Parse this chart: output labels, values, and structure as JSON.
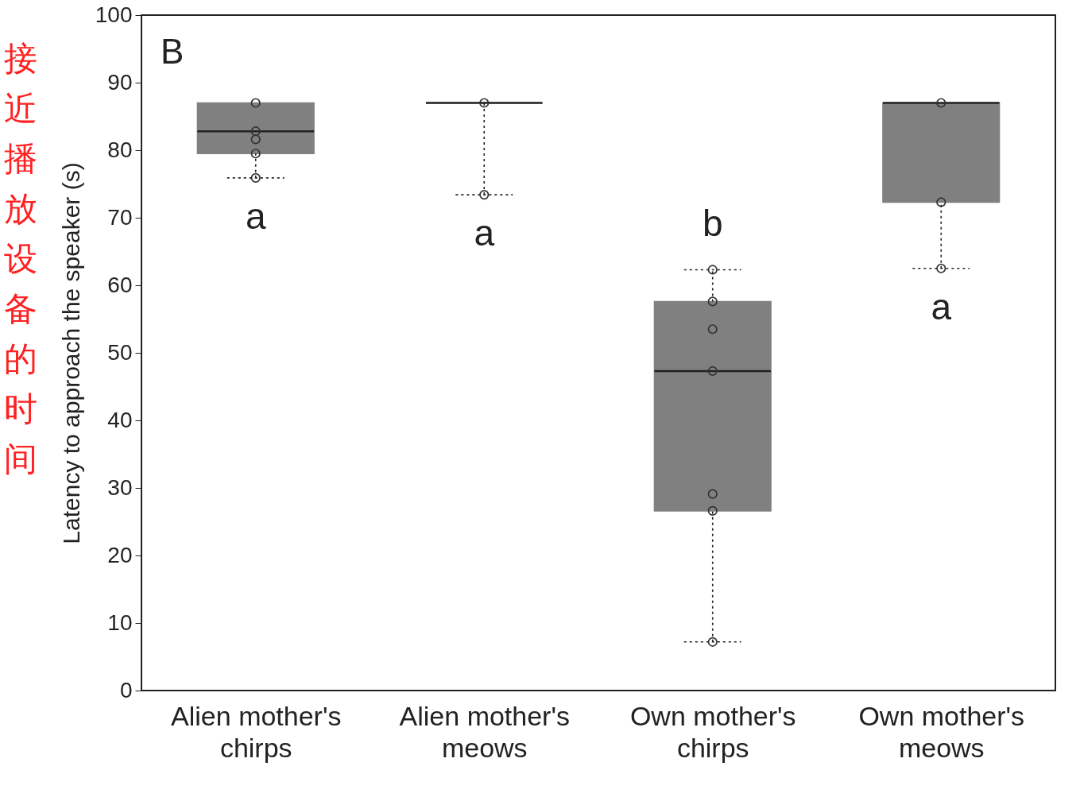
{
  "chart_data": {
    "type": "box",
    "categories": [
      "Alien mother's chirps",
      "Alien mother's meows",
      "Own mother's chirps",
      "Own mother's meows"
    ],
    "ylabel": "Latency to approach the speaker (s)",
    "ylim": [
      0,
      100
    ],
    "yticks": [
      0,
      10,
      20,
      30,
      40,
      50,
      60,
      70,
      80,
      90,
      100
    ],
    "series": [
      {
        "color": "#808080",
        "line_style": "dotted",
        "boxes": [
          {
            "low": 75.9,
            "q1": 79.5,
            "median": 82.8,
            "q3": 87.0,
            "high": 87.0
          },
          {
            "low": 73.4,
            "q1": 87.0,
            "median": 87.0,
            "q3": 87.0,
            "high": 87.0
          },
          {
            "low": 7.2,
            "q1": 26.6,
            "median": 47.3,
            "q3": 57.6,
            "high": 62.3
          },
          {
            "low": 62.5,
            "q1": 72.3,
            "median": 87.0,
            "q3": 87.0,
            "high": 87.0
          }
        ]
      },
      {
        "type": "scatter",
        "color": "#333333",
        "marker": "circle",
        "x": [
          "Alien mother's chirps",
          "Alien mother's chirps",
          "Alien mother's chirps",
          "Alien mother's chirps",
          "Alien mother's chirps",
          "Alien mother's meows",
          "Alien mother's meows",
          "Own mother's chirps",
          "Own mother's chirps",
          "Own mother's chirps",
          "Own mother's chirps",
          "Own mother's chirps",
          "Own mother's chirps",
          "Own mother's chirps",
          "Own mother's meows",
          "Own mother's meows",
          "Own mother's meows"
        ],
        "values": [
          87.0,
          82.8,
          81.6,
          79.5,
          75.9,
          87.0,
          73.4,
          62.3,
          57.6,
          53.5,
          47.3,
          29.1,
          26.6,
          7.2,
          87.0,
          72.3,
          62.5
        ]
      }
    ],
    "annotations": [
      "B",
      "a",
      "a",
      "b",
      "a",
      "接近播放设备的时间"
    ]
  }
}
